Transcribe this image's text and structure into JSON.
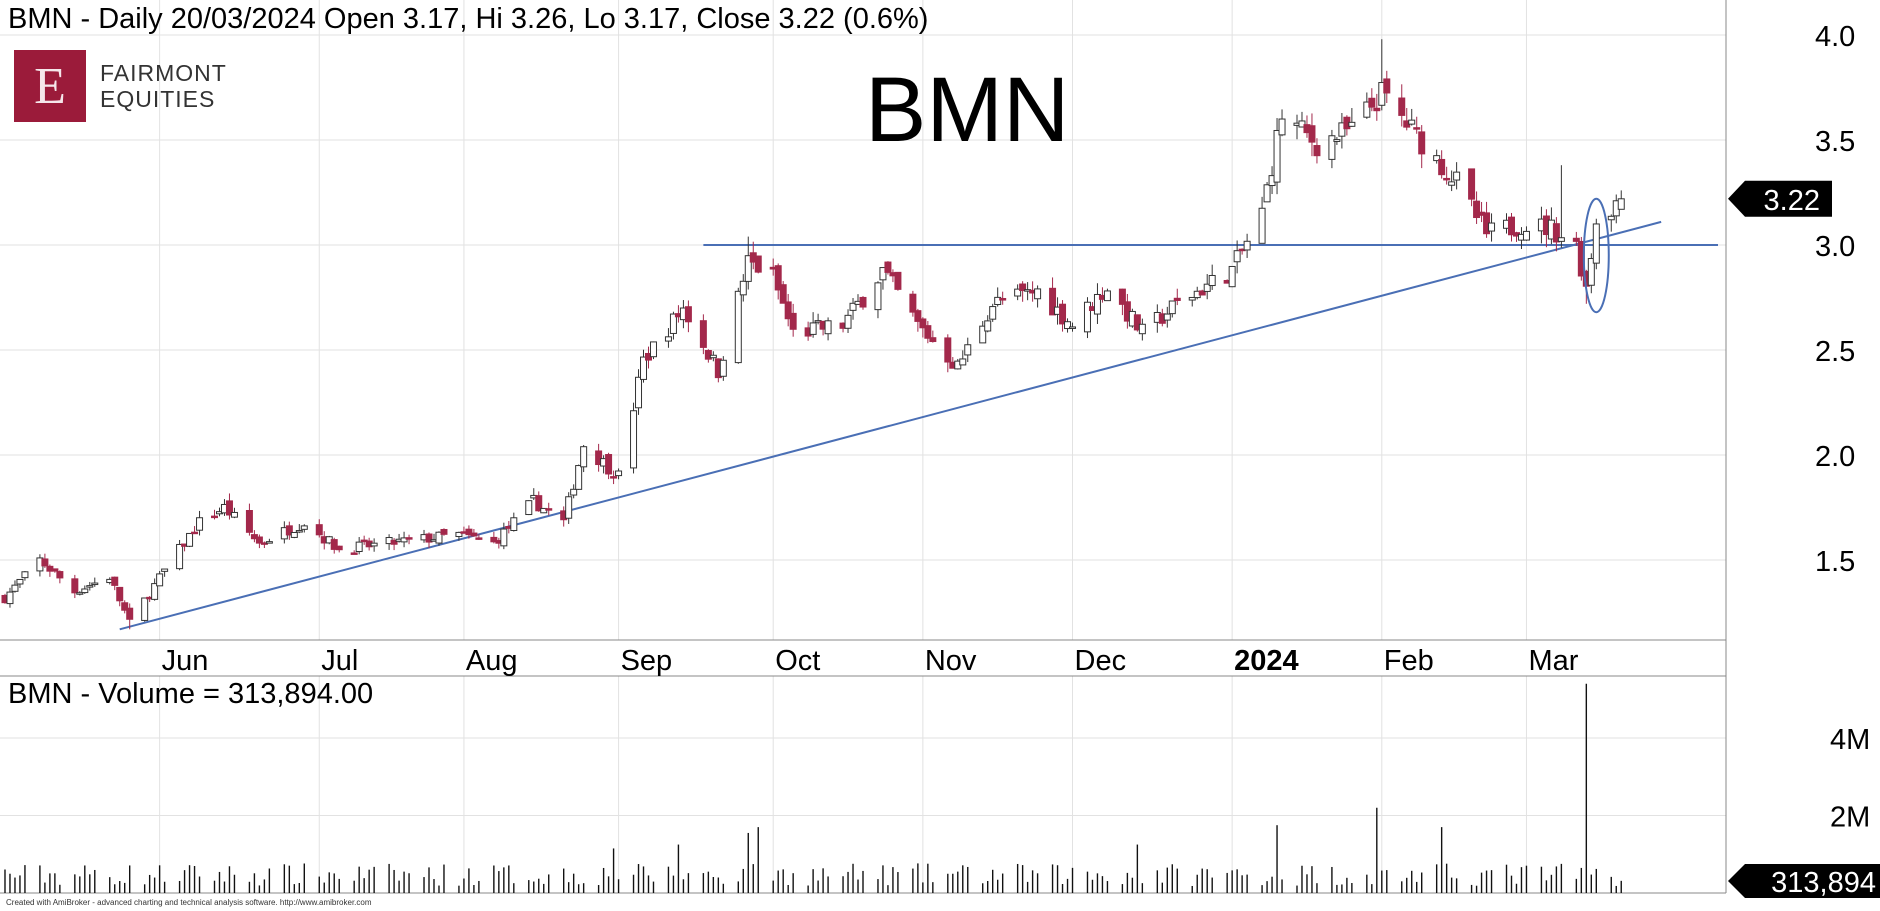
{
  "header": {
    "price_title": "BMN - Daily 20/03/2024 Open 3.17, Hi 3.26, Lo 3.17, Close 3.22 (0.6%)",
    "big_title": "BMN",
    "volume_title": "BMN - Volume = 313,894.00",
    "footer": "Created with AmiBroker - advanced charting and technical analysis software. http://www.amibroker.com"
  },
  "logo": {
    "mark": "E",
    "line1": "FAIRMONT",
    "line2": "EQUITIES"
  },
  "colors": {
    "up": "#ffffff",
    "down": "#a3284b",
    "wick": "#333333",
    "trend": "#4a6fb5",
    "grid": "#e2e2e2"
  },
  "chart_data": [
    {
      "type": "candlestick",
      "ylim": [
        1.1,
        4.1
      ],
      "yticks": [
        1.5,
        2.0,
        2.5,
        3.0,
        3.5,
        4.0
      ],
      "ytick_labels": [
        "1.5",
        "2.0",
        "2.5",
        "3.0",
        "3.5",
        "4.0"
      ],
      "x_labels": [
        {
          "label": "Jun",
          "date": "2023-06-01"
        },
        {
          "label": "Jul",
          "date": "2023-07-03"
        },
        {
          "label": "Aug",
          "date": "2023-08-01"
        },
        {
          "label": "Sep",
          "date": "2023-09-01"
        },
        {
          "label": "Oct",
          "date": "2023-10-02"
        },
        {
          "label": "Nov",
          "date": "2023-11-01"
        },
        {
          "label": "Dec",
          "date": "2023-12-01"
        },
        {
          "label": "2024",
          "date": "2024-01-02",
          "bold": true
        },
        {
          "label": "Feb",
          "date": "2024-02-01"
        },
        {
          "label": "Mar",
          "date": "2024-03-01"
        }
      ],
      "last_price_label": "3.22",
      "last_price": 3.22,
      "horizontal_line": {
        "from": "2023-09-18",
        "value": 3.0
      },
      "trendline": {
        "from": [
          "2023-05-24",
          1.17
        ],
        "to": [
          "2024-03-28",
          3.11
        ]
      },
      "highlight_ellipse": {
        "center": [
          "2024-03-15",
          2.95
        ],
        "rx_days": 2.5,
        "ry_value": 0.27
      },
      "candle_keypoints": [
        [
          "2023-05-01",
          1.32
        ],
        [
          "2023-05-08",
          1.5
        ],
        [
          "2023-05-15",
          1.35
        ],
        [
          "2023-05-22",
          1.42
        ],
        [
          "2023-05-26",
          1.2
        ],
        [
          "2023-06-02",
          1.45
        ],
        [
          "2023-06-09",
          1.68
        ],
        [
          "2023-06-14",
          1.75
        ],
        [
          "2023-06-21",
          1.58
        ],
        [
          "2023-06-30",
          1.68
        ],
        [
          "2023-07-07",
          1.55
        ],
        [
          "2023-07-17",
          1.58
        ],
        [
          "2023-07-31",
          1.62
        ],
        [
          "2023-08-07",
          1.58
        ],
        [
          "2023-08-15",
          1.78
        ],
        [
          "2023-08-21",
          1.68
        ],
        [
          "2023-08-25",
          2.05
        ],
        [
          "2023-09-01",
          1.9
        ],
        [
          "2023-09-06",
          2.45
        ],
        [
          "2023-09-14",
          2.7
        ],
        [
          "2023-09-21",
          2.4
        ],
        [
          "2023-09-27",
          2.92
        ],
        [
          "2023-10-02",
          2.85
        ],
        [
          "2023-10-06",
          2.58
        ],
        [
          "2023-10-16",
          2.62
        ],
        [
          "2023-10-24",
          2.88
        ],
        [
          "2023-10-31",
          2.62
        ],
        [
          "2023-11-08",
          2.42
        ],
        [
          "2023-11-15",
          2.72
        ],
        [
          "2023-11-24",
          2.78
        ],
        [
          "2023-12-01",
          2.62
        ],
        [
          "2023-12-08",
          2.8
        ],
        [
          "2023-12-15",
          2.58
        ],
        [
          "2023-12-22",
          2.72
        ],
        [
          "2024-01-02",
          2.88
        ],
        [
          "2024-01-08",
          3.15
        ],
        [
          "2024-01-12",
          3.62
        ],
        [
          "2024-01-19",
          3.48
        ],
        [
          "2024-01-26",
          3.55
        ],
        [
          "2024-02-01",
          3.72
        ],
        [
          "2024-02-08",
          3.52
        ],
        [
          "2024-02-16",
          3.3
        ],
        [
          "2024-02-22",
          3.05
        ],
        [
          "2024-02-29",
          3.1
        ],
        [
          "2024-03-06",
          3.08
        ],
        [
          "2024-03-11",
          3.0
        ],
        [
          "2024-03-13",
          2.8
        ],
        [
          "2024-03-15",
          3.12
        ],
        [
          "2024-03-20",
          3.22
        ]
      ],
      "notable_highs": [
        [
          "2024-02-01",
          3.98
        ],
        [
          "2024-03-08",
          3.38
        ],
        [
          "2023-09-27",
          3.04
        ]
      ],
      "notable_lows": [
        [
          "2023-05-26",
          1.17
        ],
        [
          "2024-03-13",
          2.72
        ]
      ],
      "last_candle": {
        "date": "2024-03-20",
        "open": 3.17,
        "high": 3.26,
        "low": 3.17,
        "close": 3.22
      }
    },
    {
      "type": "bar",
      "series_name": "Volume",
      "ylim": [
        0,
        5500000
      ],
      "yticks": [
        2000000,
        4000000
      ],
      "ytick_labels": [
        "2M",
        "4M"
      ],
      "last_volume_label": "313,894",
      "last_volume": 313894,
      "base_level": 900000,
      "spikes": [
        [
          "2024-03-13",
          5400000
        ],
        [
          "2024-01-31",
          2200000
        ],
        [
          "2024-02-13",
          1700000
        ],
        [
          "2024-01-11",
          1750000
        ],
        [
          "2023-09-29",
          1700000
        ],
        [
          "2023-09-27",
          1550000
        ],
        [
          "2023-09-13",
          1250000
        ],
        [
          "2023-12-14",
          1250000
        ],
        [
          "2023-08-31",
          1150000
        ]
      ]
    }
  ]
}
